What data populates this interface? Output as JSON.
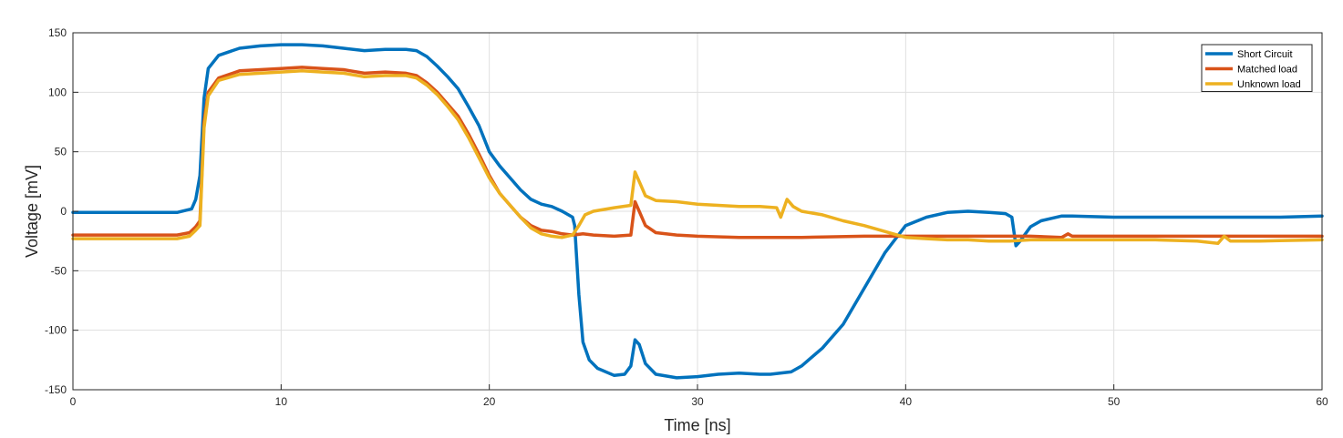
{
  "chart_data": {
    "type": "line",
    "xlabel": "Time [ns]",
    "ylabel": "Voltage [mV]",
    "xlim": [
      0,
      60
    ],
    "ylim": [
      -150,
      150
    ],
    "xticks": [
      0,
      10,
      20,
      30,
      40,
      50,
      60
    ],
    "yticks": [
      -150,
      -100,
      -50,
      0,
      50,
      100,
      150
    ],
    "xtick_labels": [
      "0",
      "10",
      "20",
      "30",
      "40",
      "50",
      "60"
    ],
    "ytick_labels": [
      "-150",
      "-100",
      "-50",
      "0",
      "50",
      "100",
      "150"
    ],
    "grid": true,
    "legend_position": "top-right",
    "series": [
      {
        "name": "Short Circuit",
        "color": "#0072BD",
        "points": [
          [
            0,
            -1
          ],
          [
            5,
            -1
          ],
          [
            5.7,
            2
          ],
          [
            5.9,
            10
          ],
          [
            6.1,
            30
          ],
          [
            6.3,
            95
          ],
          [
            6.5,
            120
          ],
          [
            7,
            131
          ],
          [
            8,
            137
          ],
          [
            9,
            139
          ],
          [
            10,
            140
          ],
          [
            11,
            140
          ],
          [
            12,
            139
          ],
          [
            13,
            137
          ],
          [
            14,
            135
          ],
          [
            15,
            136
          ],
          [
            16,
            136
          ],
          [
            16.5,
            135
          ],
          [
            17,
            130
          ],
          [
            17.5,
            122
          ],
          [
            18,
            113
          ],
          [
            18.5,
            103
          ],
          [
            19,
            88
          ],
          [
            19.5,
            72
          ],
          [
            20,
            50
          ],
          [
            20.5,
            38
          ],
          [
            21,
            28
          ],
          [
            21.5,
            18
          ],
          [
            22,
            10
          ],
          [
            22.5,
            6
          ],
          [
            23,
            4
          ],
          [
            23.5,
            0
          ],
          [
            24,
            -5
          ],
          [
            24.1,
            -12
          ],
          [
            24.3,
            -70
          ],
          [
            24.5,
            -110
          ],
          [
            24.8,
            -125
          ],
          [
            25.2,
            -132
          ],
          [
            26,
            -138
          ],
          [
            26.5,
            -137
          ],
          [
            26.8,
            -130
          ],
          [
            27,
            -108
          ],
          [
            27.2,
            -112
          ],
          [
            27.5,
            -128
          ],
          [
            28,
            -137
          ],
          [
            29,
            -140
          ],
          [
            30,
            -139
          ],
          [
            31,
            -137
          ],
          [
            32,
            -136
          ],
          [
            33,
            -137
          ],
          [
            33.5,
            -137
          ],
          [
            34.5,
            -135
          ],
          [
            35,
            -130
          ],
          [
            36,
            -115
          ],
          [
            37,
            -95
          ],
          [
            38,
            -65
          ],
          [
            39,
            -35
          ],
          [
            40,
            -12
          ],
          [
            41,
            -5
          ],
          [
            42,
            -1
          ],
          [
            43,
            0
          ],
          [
            44,
            -1
          ],
          [
            44.8,
            -2
          ],
          [
            45.1,
            -5
          ],
          [
            45.3,
            -29
          ],
          [
            45.5,
            -25
          ],
          [
            46,
            -13
          ],
          [
            46.5,
            -8
          ],
          [
            47,
            -6
          ],
          [
            47.5,
            -4
          ],
          [
            48,
            -4
          ],
          [
            50,
            -5
          ],
          [
            52,
            -5
          ],
          [
            55,
            -5
          ],
          [
            58,
            -5
          ],
          [
            60,
            -4
          ]
        ]
      },
      {
        "name": "Matched load",
        "color": "#D95319",
        "points": [
          [
            0,
            -20
          ],
          [
            5,
            -20
          ],
          [
            5.6,
            -18
          ],
          [
            5.9,
            -13
          ],
          [
            6.1,
            -8
          ],
          [
            6.3,
            75
          ],
          [
            6.5,
            100
          ],
          [
            7,
            112
          ],
          [
            8,
            118
          ],
          [
            9,
            119
          ],
          [
            10,
            120
          ],
          [
            11,
            121
          ],
          [
            12,
            120
          ],
          [
            13,
            119
          ],
          [
            14,
            116
          ],
          [
            15,
            117
          ],
          [
            16,
            116
          ],
          [
            16.5,
            114
          ],
          [
            17,
            108
          ],
          [
            17.5,
            100
          ],
          [
            18,
            90
          ],
          [
            18.5,
            80
          ],
          [
            19,
            65
          ],
          [
            19.5,
            48
          ],
          [
            20,
            30
          ],
          [
            20.5,
            15
          ],
          [
            21,
            5
          ],
          [
            21.5,
            -5
          ],
          [
            22,
            -12
          ],
          [
            22.5,
            -16
          ],
          [
            23,
            -17
          ],
          [
            23.5,
            -19
          ],
          [
            24,
            -20
          ],
          [
            24.5,
            -19
          ],
          [
            25,
            -20
          ],
          [
            26,
            -21
          ],
          [
            26.8,
            -20
          ],
          [
            27,
            8
          ],
          [
            27.2,
            0
          ],
          [
            27.5,
            -12
          ],
          [
            28,
            -18
          ],
          [
            29,
            -20
          ],
          [
            30,
            -21
          ],
          [
            32,
            -22
          ],
          [
            35,
            -22
          ],
          [
            38,
            -21
          ],
          [
            40,
            -21
          ],
          [
            42,
            -21
          ],
          [
            44,
            -21
          ],
          [
            46,
            -21
          ],
          [
            47.5,
            -22
          ],
          [
            47.8,
            -19
          ],
          [
            48,
            -21
          ],
          [
            50,
            -21
          ],
          [
            55,
            -21
          ],
          [
            60,
            -21
          ]
        ]
      },
      {
        "name": "Unknown load",
        "color": "#EDB120",
        "points": [
          [
            0,
            -23
          ],
          [
            5,
            -23
          ],
          [
            5.6,
            -21
          ],
          [
            5.9,
            -16
          ],
          [
            6.1,
            -12
          ],
          [
            6.3,
            70
          ],
          [
            6.5,
            97
          ],
          [
            7,
            110
          ],
          [
            8,
            115
          ],
          [
            9,
            116
          ],
          [
            10,
            117
          ],
          [
            11,
            118
          ],
          [
            12,
            117
          ],
          [
            13,
            116
          ],
          [
            14,
            113
          ],
          [
            15,
            114
          ],
          [
            16,
            114
          ],
          [
            16.5,
            112
          ],
          [
            17,
            106
          ],
          [
            17.5,
            98
          ],
          [
            18,
            88
          ],
          [
            18.5,
            77
          ],
          [
            19,
            62
          ],
          [
            19.5,
            45
          ],
          [
            20,
            28
          ],
          [
            20.5,
            15
          ],
          [
            21,
            5
          ],
          [
            21.5,
            -5
          ],
          [
            22,
            -14
          ],
          [
            22.5,
            -19
          ],
          [
            23,
            -21
          ],
          [
            23.5,
            -22
          ],
          [
            24,
            -20
          ],
          [
            24.3,
            -12
          ],
          [
            24.6,
            -3
          ],
          [
            25,
            0
          ],
          [
            26,
            3
          ],
          [
            26.8,
            5
          ],
          [
            27,
            33
          ],
          [
            27.2,
            25
          ],
          [
            27.5,
            13
          ],
          [
            28,
            9
          ],
          [
            29,
            8
          ],
          [
            30,
            6
          ],
          [
            31,
            5
          ],
          [
            32,
            4
          ],
          [
            33,
            4
          ],
          [
            33.8,
            3
          ],
          [
            34,
            -5
          ],
          [
            34.3,
            10
          ],
          [
            34.6,
            4
          ],
          [
            35,
            0
          ],
          [
            36,
            -3
          ],
          [
            37,
            -8
          ],
          [
            38,
            -12
          ],
          [
            39,
            -17
          ],
          [
            40,
            -22
          ],
          [
            41,
            -23
          ],
          [
            42,
            -24
          ],
          [
            43,
            -24
          ],
          [
            44,
            -25
          ],
          [
            45,
            -25
          ],
          [
            46,
            -24
          ],
          [
            48,
            -24
          ],
          [
            50,
            -24
          ],
          [
            52,
            -24
          ],
          [
            54,
            -25
          ],
          [
            55,
            -27
          ],
          [
            55.3,
            -21
          ],
          [
            55.6,
            -25
          ],
          [
            57,
            -25
          ],
          [
            60,
            -24
          ]
        ]
      }
    ]
  }
}
